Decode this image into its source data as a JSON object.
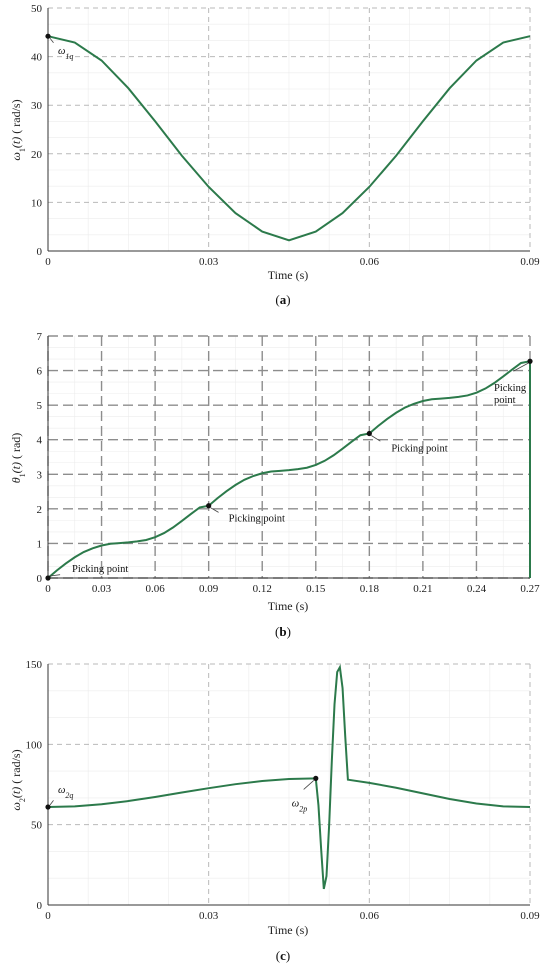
{
  "colors": {
    "series": "#2c7a4b",
    "grid": "#b9b9b9",
    "axis": "#333333"
  },
  "chart_data": [
    {
      "type": "line",
      "caption_letter": "a",
      "xlabel": "Time (s)",
      "ylabel": "ω1(t) ( rad/s)",
      "xlim": [
        0,
        0.09
      ],
      "ylim": [
        0,
        50
      ],
      "x_ticks": [
        "0",
        "0.03",
        "0.06",
        "0.09"
      ],
      "y_ticks": [
        "0",
        "10",
        "20",
        "30",
        "40",
        "50"
      ],
      "grid": true,
      "series": [
        {
          "x": [
            0,
            0.005,
            0.01,
            0.015,
            0.02,
            0.025,
            0.03,
            0.035,
            0.04,
            0.045,
            0.05,
            0.055,
            0.06,
            0.065,
            0.07,
            0.075,
            0.08,
            0.085,
            0.09
          ],
          "y": [
            44.2,
            42.9,
            39.2,
            33.5,
            26.7,
            19.6,
            13.2,
            7.8,
            4.0,
            2.2,
            4.0,
            7.8,
            13.2,
            19.6,
            26.7,
            33.5,
            39.2,
            42.9,
            44.2
          ]
        }
      ],
      "annotations": [
        {
          "label": "ω",
          "sub": "1q",
          "x": 0,
          "y": 44.2
        }
      ]
    },
    {
      "type": "line",
      "caption_letter": "b",
      "xlabel": "Time (s)",
      "ylabel": "θ1(t) ( rad)",
      "xlim": [
        0,
        0.27
      ],
      "ylim": [
        0,
        7
      ],
      "x_ticks": [
        "0",
        "0.03",
        "0.06",
        "0.09",
        "0.12",
        "0.15",
        "0.18",
        "0.21",
        "0.24",
        "0.27"
      ],
      "y_ticks": [
        "0",
        "1",
        "2",
        "3",
        "4",
        "5",
        "6",
        "7"
      ],
      "grid": true,
      "series": [
        {
          "x": [
            0,
            0.005,
            0.01,
            0.015,
            0.02,
            0.025,
            0.03,
            0.035,
            0.04,
            0.045,
            0.05,
            0.055,
            0.06,
            0.065,
            0.07,
            0.075,
            0.08,
            0.085,
            0.09,
            0.095,
            0.1,
            0.105,
            0.11,
            0.115,
            0.12,
            0.125,
            0.13,
            0.135,
            0.14,
            0.145,
            0.15,
            0.155,
            0.16,
            0.165,
            0.17,
            0.175,
            0.18,
            0.185,
            0.19,
            0.195,
            0.2,
            0.205,
            0.21,
            0.215,
            0.22,
            0.225,
            0.23,
            0.235,
            0.24,
            0.245,
            0.25,
            0.255,
            0.26,
            0.265,
            0.27
          ],
          "y": [
            0,
            0.22,
            0.42,
            0.6,
            0.75,
            0.86,
            0.94,
            0.99,
            1.01,
            1.03,
            1.06,
            1.1,
            1.18,
            1.3,
            1.46,
            1.65,
            1.85,
            2.04,
            2.09,
            2.31,
            2.51,
            2.69,
            2.84,
            2.95,
            3.03,
            3.08,
            3.1,
            3.12,
            3.15,
            3.19,
            3.27,
            3.39,
            3.55,
            3.74,
            3.94,
            4.13,
            4.18,
            4.4,
            4.6,
            4.78,
            4.93,
            5.04,
            5.12,
            5.17,
            5.19,
            5.21,
            5.24,
            5.28,
            5.36,
            5.48,
            5.64,
            5.83,
            6.03,
            6.22,
            6.27
          ]
        }
      ],
      "annotations": [
        {
          "label": "Picking point",
          "x": 0,
          "y": 0
        },
        {
          "label": "Picking point",
          "x": 0.09,
          "y": 2.09
        },
        {
          "label": "Picking point",
          "x": 0.18,
          "y": 4.18
        },
        {
          "label": "Picking",
          "label2": "point",
          "x": 0.27,
          "y": 6.27
        }
      ]
    },
    {
      "type": "line",
      "caption_letter": "c",
      "xlabel": "Time (s)",
      "ylabel": "ω2(t) ( rad/s)",
      "xlim": [
        0,
        0.09
      ],
      "ylim": [
        0,
        150
      ],
      "x_ticks": [
        "0",
        "0.03",
        "0.06",
        "0.09"
      ],
      "y_ticks": [
        "0",
        "50",
        "100",
        "150"
      ],
      "grid": true,
      "series": [
        {
          "x": [
            0,
            0.005,
            0.01,
            0.015,
            0.02,
            0.025,
            0.03,
            0.035,
            0.04,
            0.045,
            0.05,
            0.0505,
            0.051,
            0.0515,
            0.052,
            0.0525,
            0.053,
            0.0535,
            0.054,
            0.0545,
            0.055,
            0.0555,
            0.056,
            0.06,
            0.065,
            0.07,
            0.075,
            0.08,
            0.085,
            0.09
          ],
          "y": [
            61,
            61.4,
            62.7,
            64.7,
            67.2,
            70.0,
            72.7,
            75.2,
            77.2,
            78.4,
            78.8,
            62,
            35,
            10,
            18,
            50,
            90,
            125,
            145,
            148,
            135,
            105,
            78,
            76,
            73,
            69.5,
            66,
            63.2,
            61.4,
            61
          ]
        }
      ],
      "annotations": [
        {
          "label": "ω",
          "sub": "2q",
          "x": 0,
          "y": 61
        },
        {
          "label": "ω",
          "sub": "2p",
          "x": 0.05,
          "y": 78.8
        }
      ]
    }
  ]
}
